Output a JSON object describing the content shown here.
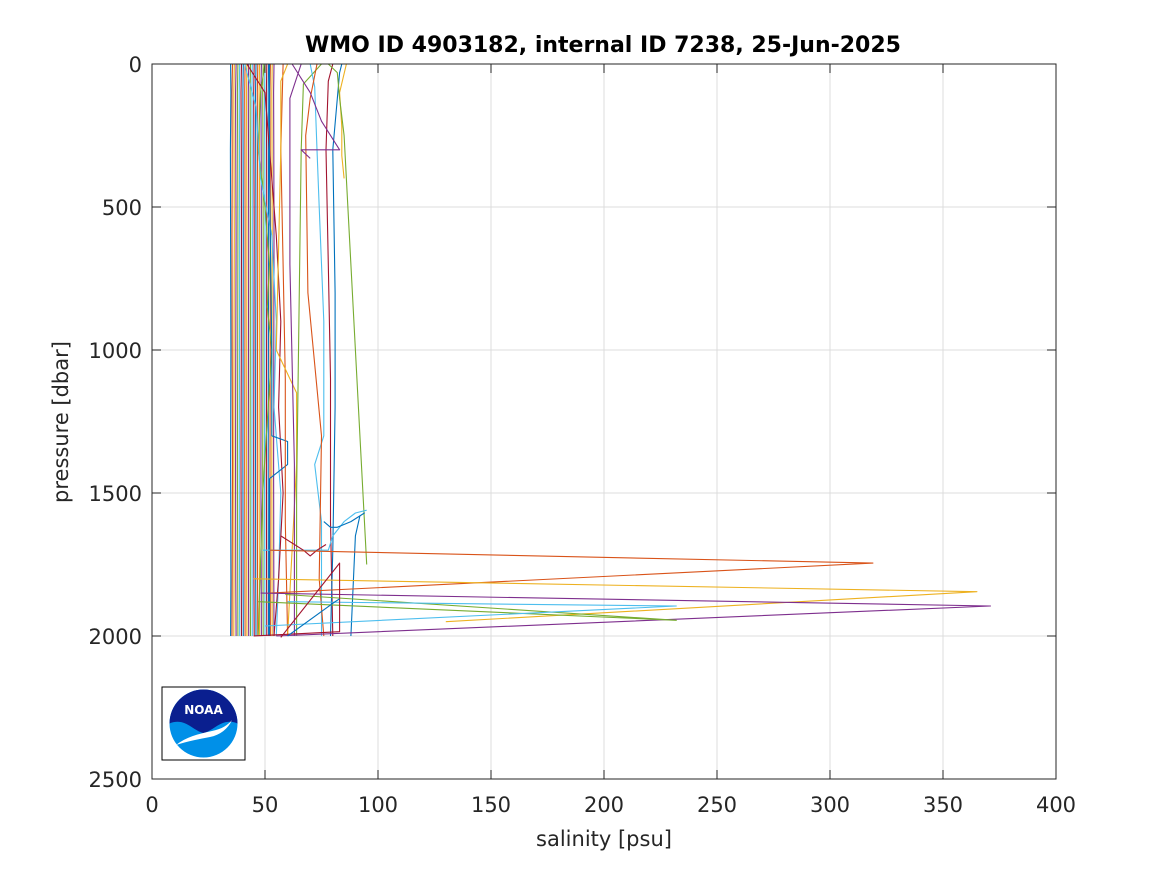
{
  "chart_data": {
    "type": "line",
    "title": "WMO ID 4903182, internal ID 7238, 25-Jun-2025",
    "xlabel": "salinity [psu]",
    "ylabel": "pressure [dbar]",
    "xlim": [
      0,
      400
    ],
    "ylim": [
      0,
      2500
    ],
    "y_reversed": true,
    "grid": true,
    "xticks": [
      0,
      50,
      100,
      150,
      200,
      250,
      300,
      350,
      400
    ],
    "yticks": [
      0,
      500,
      1000,
      1500,
      2000,
      2500
    ],
    "xtick_labels": [
      "0",
      "50",
      "100",
      "150",
      "200",
      "250",
      "300",
      "350",
      "400"
    ],
    "ytick_labels": [
      "0",
      "500",
      "1000",
      "1500",
      "2000",
      "2500"
    ],
    "logo_text": "NOAA",
    "colors": [
      "#0072BD",
      "#D95319",
      "#EDB120",
      "#7E2F8E",
      "#77AC30",
      "#4DBEEE",
      "#A2142F"
    ],
    "series": [
      {
        "x": [
          34.8,
          34.9,
          34.7,
          34.8,
          34.9,
          34.8,
          34.9,
          34.8
        ],
        "y": [
          0,
          100,
          300,
          600,
          1000,
          1400,
          1800,
          2000
        ]
      },
      {
        "x": [
          35.6,
          35.4,
          35.5,
          35.4,
          35.5,
          35.6,
          35.5,
          35.4
        ],
        "y": [
          0,
          100,
          300,
          600,
          1000,
          1400,
          1800,
          2000
        ]
      },
      {
        "x": [
          36.4,
          36.2,
          36.3,
          36.4,
          36.3,
          36.2,
          36.3,
          36.2
        ],
        "y": [
          0,
          100,
          300,
          600,
          1000,
          1400,
          1800,
          2000
        ]
      },
      {
        "x": [
          37.2,
          37.0,
          37.1,
          37.2,
          37.1,
          37.0,
          37.1,
          37.2
        ],
        "y": [
          0,
          100,
          300,
          600,
          1000,
          1400,
          1800,
          2000
        ]
      },
      {
        "x": [
          38.0,
          37.8,
          37.9,
          38.0,
          37.9,
          37.8,
          37.9,
          38.0
        ],
        "y": [
          0,
          100,
          300,
          600,
          1000,
          1400,
          1800,
          2000
        ]
      },
      {
        "x": [
          38.8,
          38.6,
          38.7,
          38.8,
          38.7,
          38.6,
          38.7,
          38.8
        ],
        "y": [
          0,
          100,
          300,
          600,
          1000,
          1400,
          1800,
          2000
        ]
      },
      {
        "x": [
          39.6,
          39.4,
          39.5,
          39.6,
          39.5,
          39.4,
          39.5,
          39.6
        ],
        "y": [
          0,
          100,
          300,
          600,
          1000,
          1400,
          1800,
          2000
        ]
      },
      {
        "x": [
          40.4,
          40.2,
          40.3,
          40.4,
          40.3,
          40.2,
          40.3,
          40.4
        ],
        "y": [
          0,
          100,
          300,
          600,
          1000,
          1400,
          1800,
          2000
        ]
      },
      {
        "x": [
          41.2,
          41.0,
          41.1,
          41.2,
          41.1,
          41.0,
          41.1,
          41.2
        ],
        "y": [
          0,
          100,
          300,
          600,
          1000,
          1400,
          1800,
          2000
        ]
      },
      {
        "x": [
          42.0,
          41.8,
          41.9,
          42.0,
          41.9,
          41.8,
          41.9,
          42.0
        ],
        "y": [
          0,
          100,
          300,
          600,
          1000,
          1400,
          1800,
          2000
        ]
      },
      {
        "x": [
          42.8,
          42.6,
          42.7,
          42.8,
          42.7,
          42.6,
          42.7,
          42.8
        ],
        "y": [
          0,
          100,
          300,
          600,
          1000,
          1400,
          1800,
          2000
        ]
      },
      {
        "x": [
          43.6,
          43.4,
          43.5,
          43.6,
          43.5,
          43.4,
          43.5,
          43.6
        ],
        "y": [
          0,
          100,
          300,
          600,
          1000,
          1400,
          1800,
          2000
        ]
      },
      {
        "x": [
          44.4,
          44.2,
          44.3,
          44.4,
          44.3,
          44.2,
          44.3,
          44.4
        ],
        "y": [
          0,
          100,
          300,
          600,
          1000,
          1400,
          1800,
          2000
        ]
      },
      {
        "x": [
          45.2,
          45.0,
          45.1,
          45.2,
          45.1,
          45.0,
          45.1,
          45.2
        ],
        "y": [
          0,
          100,
          300,
          600,
          1000,
          1400,
          1800,
          2000
        ]
      },
      {
        "x": [
          46.0,
          45.8,
          45.9,
          46.0,
          45.9,
          45.8,
          45.9,
          46.0
        ],
        "y": [
          0,
          100,
          300,
          600,
          1000,
          1400,
          1800,
          2000
        ]
      },
      {
        "x": [
          46.8,
          46.6,
          46.7,
          46.8,
          46.7,
          46.6,
          46.7,
          46.8
        ],
        "y": [
          0,
          100,
          300,
          600,
          1000,
          1400,
          1800,
          2000
        ]
      },
      {
        "x": [
          47.6,
          47.4,
          47.5,
          47.6,
          47.5,
          47.4,
          47.5,
          47.6
        ],
        "y": [
          0,
          100,
          300,
          600,
          1000,
          1400,
          1800,
          2000
        ]
      },
      {
        "x": [
          48.4,
          48.2,
          48.3,
          48.4,
          48.3,
          48.2,
          48.3,
          48.4
        ],
        "y": [
          0,
          100,
          300,
          600,
          1000,
          1400,
          1800,
          2000
        ]
      },
      {
        "x": [
          49.2,
          49.0,
          49.1,
          49.2,
          49.1,
          49.0,
          49.1,
          49.2
        ],
        "y": [
          0,
          100,
          300,
          600,
          1000,
          1400,
          1800,
          2000
        ]
      },
      {
        "x": [
          50.0,
          49.8,
          49.9,
          50.0,
          49.9,
          49.8,
          49.9,
          50.0
        ],
        "y": [
          0,
          100,
          300,
          600,
          1000,
          1400,
          1800,
          2000
        ]
      },
      {
        "x": [
          50.8,
          50.6,
          50.7,
          50.8,
          50.7,
          50.6,
          50.7,
          50.8
        ],
        "y": [
          0,
          100,
          300,
          600,
          1000,
          1400,
          1800,
          2000
        ]
      },
      {
        "x": [
          51.6,
          51.4,
          51.5,
          51.6,
          51.5,
          51.4,
          51.5,
          51.6
        ],
        "y": [
          0,
          100,
          300,
          600,
          1000,
          1400,
          1800,
          2000
        ]
      },
      {
        "x": [
          52.4,
          52.2,
          52.3,
          52.4,
          52.3,
          52.2,
          52.3,
          52.4
        ],
        "y": [
          0,
          100,
          300,
          600,
          1000,
          1400,
          1800,
          2000
        ]
      },
      {
        "x": [
          53.2,
          53.0,
          53.1,
          53.2,
          53.1,
          53.0,
          53.1,
          53.2
        ],
        "y": [
          0,
          100,
          300,
          600,
          1000,
          1400,
          1800,
          2000
        ]
      },
      {
        "x": [
          54.0,
          53.8,
          53.9,
          54.0,
          53.9,
          53.8,
          53.9,
          54.0
        ],
        "y": [
          0,
          100,
          300,
          600,
          1000,
          1400,
          1800,
          2000
        ]
      },
      {
        "x": [
          50,
          48,
          47,
          50,
          52,
          51,
          53,
          49,
          47
        ],
        "y": [
          0,
          100,
          300,
          500,
          700,
          850,
          1000,
          1500,
          2000
        ]
      },
      {
        "x": [
          41,
          46,
          48,
          53,
          55,
          54,
          57,
          56,
          55
        ],
        "y": [
          0,
          150,
          400,
          600,
          900,
          1200,
          1500,
          1800,
          2000
        ]
      },
      {
        "x": [
          42,
          50,
          52,
          55,
          57,
          56,
          58,
          56,
          54
        ],
        "y": [
          0,
          100,
          300,
          600,
          900,
          1200,
          1500,
          1800,
          2000
        ]
      },
      {
        "x": [
          52,
          52,
          53,
          53,
          60,
          60,
          52,
          52,
          52
        ],
        "y": [
          0,
          400,
          1000,
          1300,
          1320,
          1400,
          1450,
          1800,
          2000
        ]
      },
      {
        "x": [
          58,
          57,
          58,
          59,
          59,
          60
        ],
        "y": [
          0,
          300,
          700,
          1100,
          1600,
          2000
        ]
      },
      {
        "x": [
          60,
          57,
          57,
          55,
          64,
          64,
          60
        ],
        "y": [
          0,
          60,
          300,
          1000,
          1150,
          1400,
          2000
        ]
      },
      {
        "x": [
          66,
          61,
          61,
          63,
          63
        ],
        "y": [
          0,
          120,
          700,
          1400,
          2000
        ]
      },
      {
        "x": [
          75,
          67,
          66,
          65,
          64,
          64
        ],
        "y": [
          0,
          70,
          300,
          900,
          1500,
          2000
        ]
      },
      {
        "x": [
          70,
          72,
          73,
          74,
          76,
          76,
          72,
          75,
          75
        ],
        "y": [
          0,
          80,
          300,
          500,
          900,
          1300,
          1400,
          1600,
          2000
        ]
      },
      {
        "x": [
          80,
          78,
          77,
          78,
          79,
          79,
          80
        ],
        "y": [
          0,
          60,
          300,
          700,
          1100,
          1600,
          2000
        ]
      },
      {
        "x": [
          84,
          83,
          80,
          81,
          81,
          80,
          79
        ],
        "y": [
          0,
          30,
          300,
          800,
          1200,
          1700,
          2000
        ]
      },
      {
        "x": [
          73,
          70,
          68,
          69,
          75,
          74,
          76
        ],
        "y": [
          0,
          120,
          250,
          800,
          1300,
          1800,
          2000
        ]
      },
      {
        "x": [
          86,
          83,
          84,
          84,
          85
        ],
        "y": [
          0,
          100,
          220,
          320,
          400
        ]
      },
      {
        "x": [
          62,
          70,
          75,
          83,
          66,
          70
        ],
        "y": [
          0,
          100,
          200,
          300,
          300,
          330
        ]
      },
      {
        "x": [
          78,
          82,
          83,
          85,
          95
        ],
        "y": [
          0,
          30,
          120,
          250,
          1750
        ]
      },
      {
        "x": [
          49,
          78,
          80,
          85,
          90,
          95
        ],
        "y": [
          1700,
          1700,
          1650,
          1600,
          1570,
          1560
        ]
      },
      {
        "x": [
          57,
          67,
          70,
          73,
          77
        ],
        "y": [
          1650,
          1700,
          1720,
          1700,
          1680
        ]
      },
      {
        "x": [
          76,
          79,
          82,
          88,
          94,
          92,
          90,
          88
        ],
        "y": [
          1600,
          1620,
          1620,
          1600,
          1570,
          1580,
          1650,
          2000
        ]
      },
      {
        "x": [
          52,
          319,
          52
        ],
        "y": [
          1700,
          1745,
          1850
        ]
      },
      {
        "x": [
          45,
          365,
          130
        ],
        "y": [
          1800,
          1845,
          1950
        ]
      },
      {
        "x": [
          48,
          371,
          55
        ],
        "y": [
          1850,
          1895,
          2000
        ]
      },
      {
        "x": [
          47,
          232,
          59
        ],
        "y": [
          1880,
          1945,
          1855
        ]
      },
      {
        "x": [
          60,
          232,
          50
        ],
        "y": [
          1880,
          1895,
          1965
        ]
      },
      {
        "x": [
          57,
          83,
          83,
          45
        ],
        "y": [
          2005,
          1745,
          1985,
          2000
        ]
      },
      {
        "x": [
          60,
          81,
          83
        ],
        "y": [
          2000,
          1880,
          1870
        ]
      }
    ]
  }
}
